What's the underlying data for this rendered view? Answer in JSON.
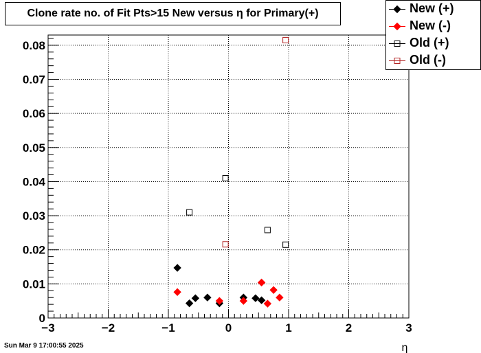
{
  "chart_data": {
    "type": "scatter",
    "title": "Clone rate no. of Fit Pts>15 New versus η for Primary(+)",
    "xlabel": "η",
    "ylabel": "",
    "xlim": [
      -3,
      3
    ],
    "ylim": [
      0,
      0.083
    ],
    "x_ticks": [
      -3,
      -2,
      -1,
      0,
      1,
      2,
      3
    ],
    "x_tick_labels": [
      "−3",
      "−2",
      "−1",
      "0",
      "1",
      "2",
      "3"
    ],
    "y_ticks": [
      0,
      0.01,
      0.02,
      0.03,
      0.04,
      0.05,
      0.06,
      0.07,
      0.08
    ],
    "y_tick_labels": [
      "0",
      "0.01",
      "0.02",
      "0.03",
      "0.04",
      "0.05",
      "0.06",
      "0.07",
      "0.08"
    ],
    "grid": true,
    "legend_position": "top-right",
    "series": [
      {
        "name": "New (+)",
        "color": "#000000",
        "marker": "filled-diamond",
        "points": [
          [
            -0.85,
            0.0147
          ],
          [
            -0.65,
            0.0043
          ],
          [
            -0.55,
            0.0058
          ],
          [
            -0.35,
            0.006
          ],
          [
            -0.15,
            0.0043
          ],
          [
            0.25,
            0.006
          ],
          [
            0.45,
            0.0058
          ],
          [
            0.55,
            0.0052
          ]
        ]
      },
      {
        "name": "New (-)",
        "color": "#ff0000",
        "marker": "filled-diamond",
        "points": [
          [
            -0.85,
            0.0076
          ],
          [
            -0.15,
            0.005
          ],
          [
            0.25,
            0.005
          ],
          [
            0.55,
            0.0104
          ],
          [
            0.65,
            0.0042
          ],
          [
            0.75,
            0.0082
          ],
          [
            0.85,
            0.006
          ]
        ]
      },
      {
        "name": "Old (+)",
        "color": "#000000",
        "marker": "open-square",
        "points": [
          [
            -0.65,
            0.031
          ],
          [
            -0.05,
            0.041
          ],
          [
            0.65,
            0.0258
          ],
          [
            0.95,
            0.0215
          ]
        ]
      },
      {
        "name": "Old (-)",
        "color": "#b22222",
        "marker": "open-square",
        "points": [
          [
            -0.05,
            0.0216
          ],
          [
            0.95,
            0.0815
          ]
        ]
      }
    ]
  },
  "footer": {
    "timestamp": "Sun Mar  9 17:00:55 2025"
  }
}
